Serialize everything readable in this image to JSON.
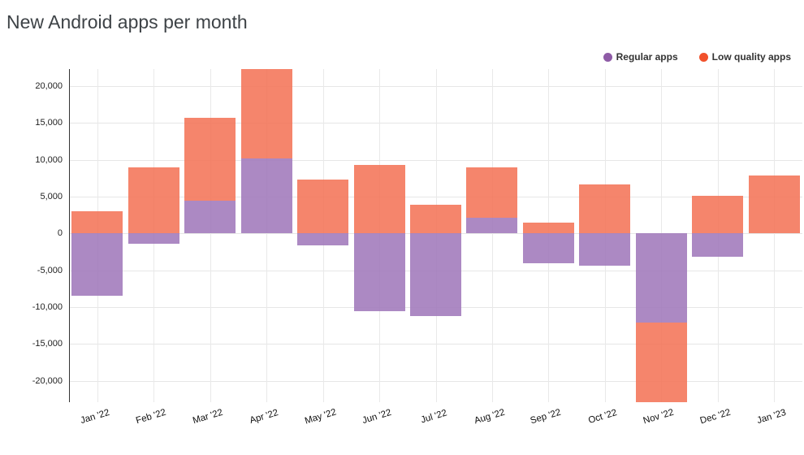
{
  "title": "New Android apps per month",
  "legend": {
    "items": [
      {
        "label": "Regular apps",
        "color": "#8e5ba6"
      },
      {
        "label": "Low quality apps",
        "color": "#f1512b"
      }
    ]
  },
  "colors": {
    "grid_horizontal": "#e6e6e6",
    "grid_vertical": "#e9e9e9",
    "y_axis_line": "#333333",
    "title_text": "#3e4347",
    "tick_text": "#222222"
  },
  "chart_data": {
    "type": "bar",
    "stacked": true,
    "title": "New Android apps per month",
    "xlabel": "",
    "ylabel": "",
    "grid": true,
    "legend_position": "top-right",
    "ylim": [
      -22900,
      22300
    ],
    "ytick_interval": 5000,
    "categories": [
      "Jan '22",
      "Feb '22",
      "Mar '22",
      "Apr '22",
      "May '22",
      "Jun '22",
      "Jul '22",
      "Aug '22",
      "Sep '22",
      "Oct '22",
      "Nov '22",
      "Dec '22",
      "Jan '23"
    ],
    "series": [
      {
        "name": "Regular apps",
        "color": "#9d74b8",
        "values": [
          -8500,
          -1400,
          4400,
          10200,
          -1600,
          -10500,
          -11200,
          2100,
          -4000,
          -4400,
          -12100,
          -3200,
          0
        ]
      },
      {
        "name": "Low quality apps",
        "color": "#f37052",
        "values": [
          3000,
          9000,
          11300,
          12100,
          7300,
          9300,
          3900,
          6900,
          1500,
          6600,
          -10900,
          5100,
          7900
        ]
      }
    ],
    "yticks": [
      {
        "value": 20000,
        "label": "20,000"
      },
      {
        "value": 15000,
        "label": "15,000"
      },
      {
        "value": 10000,
        "label": "10,000"
      },
      {
        "value": 5000,
        "label": "5,000"
      },
      {
        "value": 0,
        "label": "0"
      },
      {
        "value": -5000,
        "label": "-5,000"
      },
      {
        "value": -10000,
        "label": "-10,000"
      },
      {
        "value": -15000,
        "label": "-15,000"
      },
      {
        "value": -20000,
        "label": "-20,000"
      }
    ]
  }
}
